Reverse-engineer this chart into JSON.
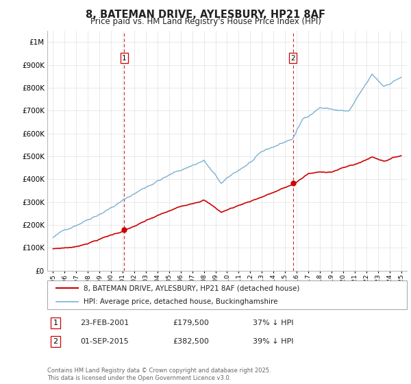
{
  "title": "8, BATEMAN DRIVE, AYLESBURY, HP21 8AF",
  "subtitle": "Price paid vs. HM Land Registry's House Price Index (HPI)",
  "legend_line1": "8, BATEMAN DRIVE, AYLESBURY, HP21 8AF (detached house)",
  "legend_line2": "HPI: Average price, detached house, Buckinghamshire",
  "annotation1_label": "1",
  "annotation1_date": "23-FEB-2001",
  "annotation1_price": "£179,500",
  "annotation1_hpi": "37% ↓ HPI",
  "annotation2_label": "2",
  "annotation2_date": "01-SEP-2015",
  "annotation2_price": "£382,500",
  "annotation2_hpi": "39% ↓ HPI",
  "footer": "Contains HM Land Registry data © Crown copyright and database right 2025.\nThis data is licensed under the Open Government Licence v3.0.",
  "sale1_year": 2001.14,
  "sale1_value": 179500,
  "sale2_year": 2015.67,
  "sale2_value": 382500,
  "red_color": "#cc0000",
  "blue_color": "#7ab0d4",
  "ylim_min": 0,
  "ylim_max": 1050000,
  "xlim_min": 1994.5,
  "xlim_max": 2025.5,
  "background_color": "#ffffff",
  "grid_color": "#e0e0e0"
}
